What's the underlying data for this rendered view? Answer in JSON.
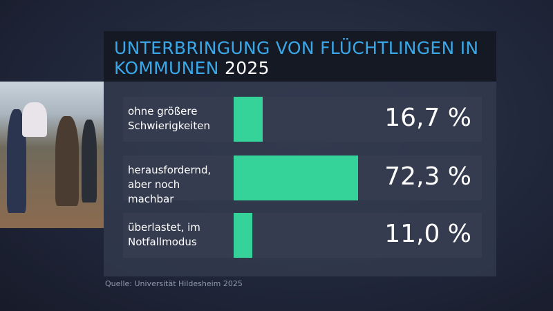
{
  "chart_data": {
    "type": "bar",
    "orientation": "horizontal",
    "title": "UNTERBRINGUNG VON FLÜCHTLINGEN IN KOMMUNEN",
    "subtitle": "2025",
    "categories": [
      "ohne größere Schwierigkeiten",
      "herausfordernd, aber noch machbar",
      "überlastet, im Notfallmodus"
    ],
    "values": [
      16.7,
      72.3,
      11.0
    ],
    "value_labels": [
      "16,7 %",
      "72,3 %",
      "11,0 %"
    ],
    "color": "#35d29a",
    "source": "Quelle: Universität Hildesheim 2025"
  }
}
